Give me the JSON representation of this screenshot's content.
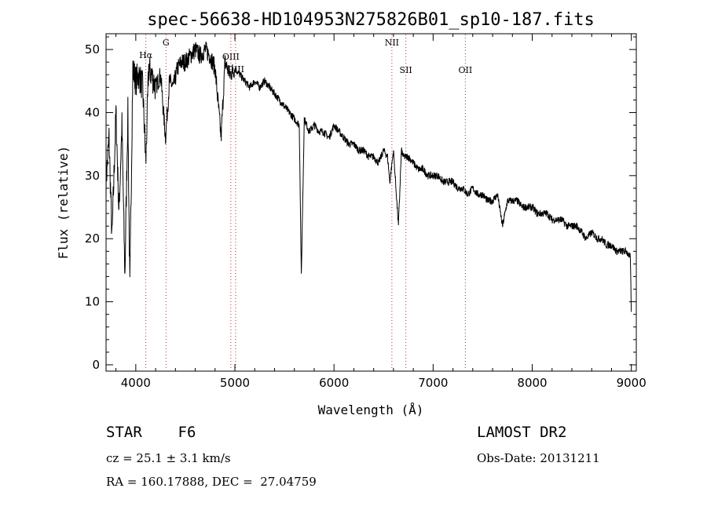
{
  "chart_data": {
    "type": "line",
    "title": "spec-56638-HD104953N275826B01_sp10-187.fits",
    "xlabel": "Wavelength (Å)",
    "ylabel": "Flux (relative)",
    "xlim": [
      3700,
      9050
    ],
    "ylim": [
      -1,
      52.5
    ],
    "x_ticks": [
      4000,
      5000,
      6000,
      7000,
      8000,
      9000
    ],
    "y_ticks": [
      0,
      10,
      20,
      30,
      40,
      50
    ],
    "grid": false,
    "line_color": "#000000",
    "marker_color": "#d02020",
    "spectral_lines": [
      {
        "label": "Hα",
        "wavelength": 4101
      },
      {
        "label": "G",
        "wavelength": 4305
      },
      {
        "label": "OIII",
        "wavelength": 4959
      },
      {
        "label": "OIII",
        "wavelength": 5007
      },
      {
        "label": "NII",
        "wavelength": 6584
      },
      {
        "label": "OII",
        "wavelength": 7325
      },
      {
        "label": "SII",
        "wavelength": 6725
      }
    ],
    "series": [
      {
        "x": [
          3700,
          3730,
          3760,
          3800,
          3830,
          3860,
          3890,
          3920,
          3940,
          3970,
          4000,
          4030,
          4070,
          4101,
          4130,
          4160,
          4200,
          4250,
          4300,
          4340,
          4380,
          4420,
          4460,
          4500,
          4550,
          4600,
          4650,
          4700,
          4750,
          4800,
          4861,
          4900,
          4950,
          5000,
          5050,
          5100,
          5150,
          5200,
          5250,
          5300,
          5350,
          5400,
          5450,
          5500,
          5550,
          5600,
          5650,
          5670,
          5700,
          5750,
          5800,
          5850,
          5890,
          5950,
          6000,
          6050,
          6100,
          6150,
          6200,
          6250,
          6300,
          6350,
          6400,
          6450,
          6500,
          6540,
          6563,
          6600,
          6650,
          6680,
          6700,
          6750,
          6800,
          6850,
          6900,
          6950,
          7000,
          7050,
          7100,
          7150,
          7200,
          7250,
          7300,
          7350,
          7400,
          7450,
          7500,
          7550,
          7600,
          7650,
          7700,
          7750,
          7800,
          7850,
          7900,
          7950,
          8000,
          8050,
          8100,
          8150,
          8200,
          8250,
          8300,
          8350,
          8400,
          8450,
          8500,
          8542,
          8600,
          8662,
          8700,
          8750,
          8800,
          8850,
          8900,
          8950,
          8990,
          9000
        ],
        "y": [
          29,
          36,
          20,
          40,
          24,
          38,
          14,
          40,
          12,
          47,
          45,
          46,
          44,
          32,
          47,
          46,
          44,
          46,
          36,
          45,
          44,
          47,
          48,
          48,
          49,
          50,
          49,
          50,
          49,
          47,
          36,
          48,
          46,
          47,
          46,
          45,
          44,
          45,
          44,
          45,
          44,
          43,
          42,
          41,
          40,
          39,
          38,
          14,
          39,
          37,
          38,
          37,
          37,
          36,
          38,
          37,
          36,
          35,
          35,
          34,
          34,
          33,
          33,
          32,
          34,
          33,
          29,
          34,
          22,
          34,
          33,
          33,
          32,
          31,
          31,
          30,
          30,
          30,
          29,
          29,
          29,
          28,
          28,
          27,
          28,
          27,
          27,
          26,
          26,
          27,
          22,
          26,
          26,
          26,
          25,
          25,
          25,
          24,
          24,
          24,
          23,
          23,
          23,
          22,
          22,
          22,
          21,
          20,
          21,
          20,
          20,
          19,
          19,
          18,
          18,
          18,
          17,
          8
        ],
        "emission_lines": [
          4340,
          4861,
          5670,
          6563,
          6680,
          7650
        ]
      }
    ]
  },
  "info": {
    "class_line": "STAR    F6",
    "survey": "LAMOST DR2",
    "cz_line": "cz = 25.1 ± 3.1 km/s",
    "obs_line": "Obs-Date: 20131211",
    "radec_line": "RA = 160.17888, DEC =  27.04759"
  }
}
